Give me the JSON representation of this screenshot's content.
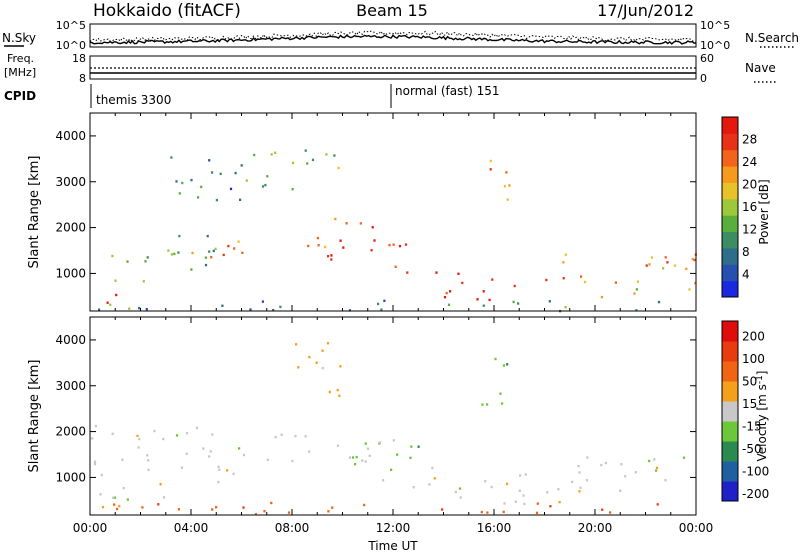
{
  "header": {
    "station": "Hokkaido (fitACF)",
    "beam": "Beam 15",
    "date": "17/Jun/2012"
  },
  "sky_panel": {
    "left_label": "N.Sky",
    "right_label": "N.Search",
    "left_ticks": [
      "10^5",
      "10^0"
    ],
    "right_ticks": [
      "10^5",
      "10^0"
    ]
  },
  "freq_panel": {
    "left_label_1": "Freq.",
    "left_label_2": "[MHz]",
    "left_ticks": [
      "18",
      "8"
    ],
    "right_label": "Nave",
    "right_ticks": [
      "60",
      "0"
    ]
  },
  "cpid_panel": {
    "label": "CPID",
    "segments": [
      {
        "start_hour": 0,
        "text": "themis 3300"
      },
      {
        "start_hour": 12,
        "text": "normal (fast) 151"
      }
    ]
  },
  "chart_data": [
    {
      "type": "heatmap",
      "title": "",
      "xlabel": "",
      "ylabel": "Slant Range [km]",
      "xlim_hours_ut": [
        0,
        24
      ],
      "ylim": [
        180,
        4500
      ],
      "x_tick_labels": [
        "00:00",
        "04:00",
        "08:00",
        "12:00",
        "16:00",
        "20:00",
        "00:00"
      ],
      "y_tick_labels": [
        "1000",
        "2000",
        "3000",
        "4000"
      ],
      "y_tick_values": [
        1000,
        2000,
        3000,
        4000
      ],
      "colorbar": {
        "label": "Power [dB]",
        "range": [
          0,
          32
        ],
        "tick_labels": [
          "4",
          "8",
          "12",
          "16",
          "20",
          "24",
          "28"
        ],
        "tick_values": [
          4,
          8,
          12,
          16,
          20,
          24,
          28
        ],
        "colors": [
          "#1a28e0",
          "#2550b0",
          "#2f6e8a",
          "#3c8c64",
          "#5aae3c",
          "#9cc83a",
          "#e8c22a",
          "#f59a1c",
          "#f2641c",
          "#e83218",
          "#e4180e"
        ]
      },
      "scatter_regions": [
        {
          "t0": 0.0,
          "t1": 1.0,
          "r0": 250,
          "r1": 700,
          "level": 30
        },
        {
          "t0": 0.5,
          "t1": 2.5,
          "r0": 700,
          "r1": 1500,
          "level": 14
        },
        {
          "t0": 2.5,
          "t1": 5.0,
          "r0": 1000,
          "r1": 2200,
          "level": 12
        },
        {
          "t0": 4.0,
          "t1": 7.0,
          "r0": 1300,
          "r1": 1900,
          "level": 24
        },
        {
          "t0": 7.0,
          "t1": 9.5,
          "r0": 1300,
          "r1": 1800,
          "level": 26
        },
        {
          "t0": 9.5,
          "t1": 11.5,
          "r0": 1000,
          "r1": 2300,
          "level": 28
        },
        {
          "t0": 11.5,
          "t1": 13.0,
          "r0": 900,
          "r1": 2000,
          "level": 26
        },
        {
          "t0": 13.5,
          "t1": 15.0,
          "r0": 500,
          "r1": 1500,
          "level": 28
        },
        {
          "t0": 15.0,
          "t1": 17.5,
          "r0": 400,
          "r1": 900,
          "level": 30
        },
        {
          "t0": 15.5,
          "t1": 16.8,
          "r0": 2600,
          "r1": 3800,
          "level": 22
        },
        {
          "t0": 2.0,
          "t1": 6.0,
          "r0": 2600,
          "r1": 3600,
          "level": 8
        },
        {
          "t0": 6.0,
          "t1": 10.0,
          "r0": 2800,
          "r1": 3800,
          "level": 14
        },
        {
          "t0": 18.0,
          "t1": 24.0,
          "r0": 800,
          "r1": 1600,
          "level": 22
        },
        {
          "t0": 20.0,
          "t1": 24.0,
          "r0": 500,
          "r1": 900,
          "level": 18
        },
        {
          "t0": 0.0,
          "t1": 24.0,
          "r0": 200,
          "r1": 450,
          "level": 10
        }
      ]
    },
    {
      "type": "heatmap",
      "title": "",
      "xlabel": "Time UT",
      "ylabel": "Slant Range [km]",
      "xlim_hours_ut": [
        0,
        24
      ],
      "ylim": [
        180,
        4500
      ],
      "x_tick_labels": [
        "00:00",
        "04:00",
        "08:00",
        "12:00",
        "16:00",
        "20:00",
        "00:00"
      ],
      "y_tick_labels": [
        "1000",
        "2000",
        "3000",
        "4000"
      ],
      "y_tick_values": [
        1000,
        2000,
        3000,
        4000
      ],
      "colorbar": {
        "label": "Velocity [m s^-1]",
        "range": [
          -250,
          250
        ],
        "tick_labels": [
          "200",
          "100",
          "50",
          "15",
          "-15",
          "-50",
          "-100",
          "-200"
        ],
        "colors": [
          "#2020c8",
          "#2060a0",
          "#2a8a50",
          "#6cc83a",
          "#c8c8c8",
          "#f4a01a",
          "#f06414",
          "#e83c10",
          "#e00c0c"
        ]
      },
      "scatter_regions": [
        {
          "t0": 0.0,
          "t1": 3.0,
          "r0": 300,
          "r1": 900,
          "level": 4
        },
        {
          "t0": 0.0,
          "t1": 6.0,
          "r0": 900,
          "r1": 2200,
          "level": 4
        },
        {
          "t0": 6.0,
          "t1": 12.0,
          "r0": 1300,
          "r1": 2000,
          "level": 4
        },
        {
          "t0": 10.0,
          "t1": 13.0,
          "r0": 800,
          "r1": 1800,
          "level": 3
        },
        {
          "t0": 13.0,
          "t1": 17.5,
          "r0": 400,
          "r1": 1300,
          "level": 4
        },
        {
          "t0": 18.0,
          "t1": 24.0,
          "r0": 700,
          "r1": 1600,
          "level": 4
        },
        {
          "t0": 8.0,
          "t1": 10.0,
          "r0": 2700,
          "r1": 4100,
          "level": 5
        },
        {
          "t0": 15.5,
          "t1": 17.0,
          "r0": 2600,
          "r1": 3800,
          "level": 3
        },
        {
          "t0": 0.0,
          "t1": 24.0,
          "r0": 200,
          "r1": 500,
          "level": 6
        }
      ]
    }
  ]
}
